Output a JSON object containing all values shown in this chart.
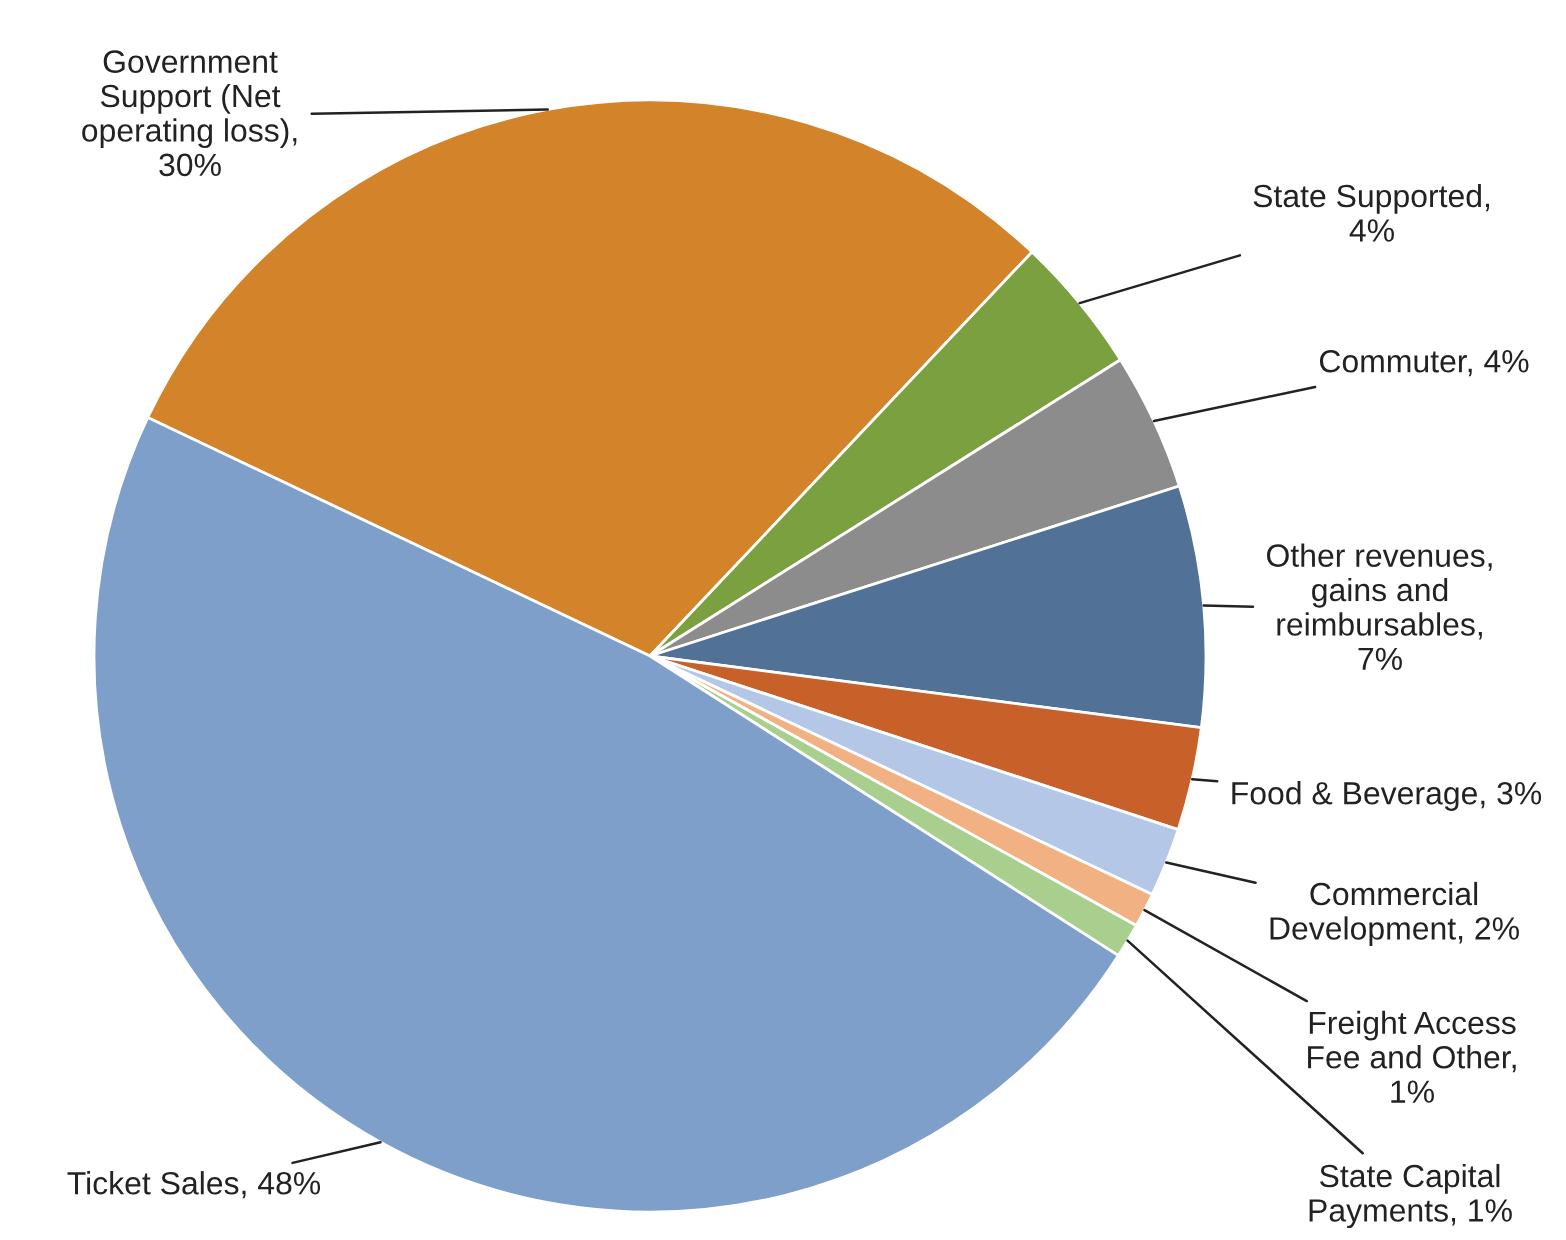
{
  "chart_data": {
    "type": "pie",
    "categories": [
      "Government Support (Net operating loss), 30%",
      "State Supported, 4%",
      "Commuter, 4%",
      "Other revenues, gains and reimbursables, 7%",
      "Food & Beverage, 3%",
      "Commercial Development, 2%",
      "Freight Access Fee and Other, 1%",
      "State Capital Payments, 1%",
      "Ticket Sales, 48%"
    ],
    "values": [
      30,
      4,
      4,
      7,
      3,
      2,
      1,
      1,
      48
    ],
    "colors": [
      "#d38329",
      "#7aa040",
      "#8c8c8c",
      "#517196",
      "#c8602a",
      "#b4c7e7",
      "#f2b183",
      "#a9cf8e",
      "#7d9fc9"
    ]
  }
}
